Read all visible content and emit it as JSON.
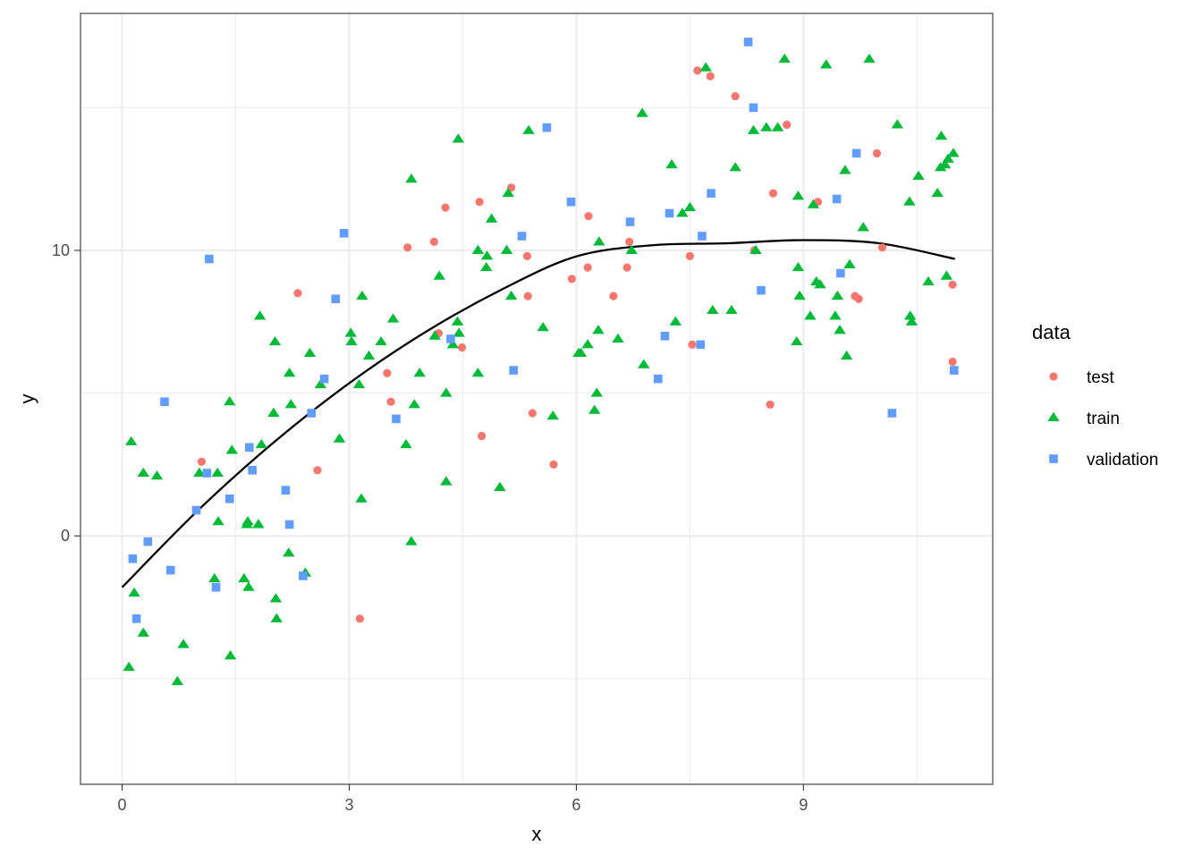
{
  "chart_data": {
    "type": "scatter",
    "title": "",
    "xlabel": "x",
    "ylabel": "y",
    "xlim": [
      -0.55,
      11.5
    ],
    "ylim": [
      -8.7,
      18.3
    ],
    "x_ticks": [
      0,
      3,
      6,
      9
    ],
    "x_tick_labels": [
      "0",
      "3",
      "6",
      "9"
    ],
    "y_ticks": [
      0,
      10
    ],
    "y_tick_labels": [
      "0",
      "10"
    ],
    "grid": true,
    "legend": {
      "title": "data",
      "position": "right"
    },
    "colors": {
      "test": "#F8766D",
      "train": "#00BA38",
      "validation": "#619CFF",
      "fit": "#000000"
    },
    "series": [
      {
        "name": "test",
        "marker": "circle",
        "points": [
          [
            1.05,
            2.6
          ],
          [
            2.32,
            8.5
          ],
          [
            2.58,
            2.3
          ],
          [
            3.14,
            -2.9
          ],
          [
            3.5,
            5.7
          ],
          [
            3.55,
            4.7
          ],
          [
            3.77,
            10.1
          ],
          [
            4.12,
            10.3
          ],
          [
            4.18,
            7.1
          ],
          [
            4.27,
            11.5
          ],
          [
            4.49,
            6.6
          ],
          [
            4.72,
            11.7
          ],
          [
            4.75,
            3.5
          ],
          [
            5.14,
            12.2
          ],
          [
            5.35,
            9.8
          ],
          [
            5.36,
            8.4
          ],
          [
            5.42,
            4.3
          ],
          [
            5.7,
            2.5
          ],
          [
            5.94,
            9.0
          ],
          [
            6.15,
            9.4
          ],
          [
            6.16,
            11.2
          ],
          [
            6.49,
            8.4
          ],
          [
            6.67,
            9.4
          ],
          [
            6.7,
            10.3
          ],
          [
            7.5,
            9.8
          ],
          [
            7.53,
            6.7
          ],
          [
            7.6,
            16.3
          ],
          [
            7.77,
            16.1
          ],
          [
            8.1,
            15.4
          ],
          [
            8.35,
            10.0
          ],
          [
            8.56,
            4.6
          ],
          [
            8.6,
            12.0
          ],
          [
            8.78,
            14.4
          ],
          [
            9.19,
            11.7
          ],
          [
            9.68,
            8.4
          ],
          [
            9.73,
            8.3
          ],
          [
            9.97,
            13.4
          ],
          [
            10.04,
            10.1
          ],
          [
            10.97,
            8.8
          ],
          [
            10.97,
            6.1
          ]
        ]
      },
      {
        "name": "train",
        "marker": "triangle",
        "points": [
          [
            0.09,
            -4.6
          ],
          [
            0.12,
            3.3
          ],
          [
            0.16,
            -2.0
          ],
          [
            0.28,
            2.2
          ],
          [
            0.28,
            -3.4
          ],
          [
            0.46,
            2.1
          ],
          [
            0.73,
            -5.1
          ],
          [
            0.81,
            -3.8
          ],
          [
            1.02,
            2.2
          ],
          [
            1.22,
            -1.5
          ],
          [
            1.26,
            2.2
          ],
          [
            1.27,
            0.5
          ],
          [
            1.42,
            4.7
          ],
          [
            1.43,
            -4.2
          ],
          [
            1.45,
            3.0
          ],
          [
            1.61,
            -1.5
          ],
          [
            1.65,
            0.4
          ],
          [
            1.66,
            0.5
          ],
          [
            1.67,
            -1.8
          ],
          [
            1.8,
            0.4
          ],
          [
            1.82,
            7.7
          ],
          [
            1.84,
            3.2
          ],
          [
            2.0,
            4.3
          ],
          [
            2.02,
            6.8
          ],
          [
            2.03,
            -2.2
          ],
          [
            2.04,
            -2.9
          ],
          [
            2.2,
            -0.6
          ],
          [
            2.21,
            5.7
          ],
          [
            2.23,
            4.6
          ],
          [
            2.42,
            -1.3
          ],
          [
            2.48,
            6.4
          ],
          [
            2.62,
            5.3
          ],
          [
            2.87,
            3.4
          ],
          [
            3.02,
            7.1
          ],
          [
            3.03,
            6.8
          ],
          [
            3.13,
            5.3
          ],
          [
            3.16,
            1.3
          ],
          [
            3.17,
            8.4
          ],
          [
            3.26,
            6.3
          ],
          [
            3.42,
            6.8
          ],
          [
            3.58,
            7.6
          ],
          [
            3.75,
            3.2
          ],
          [
            3.82,
            12.5
          ],
          [
            3.82,
            -0.2
          ],
          [
            3.86,
            4.6
          ],
          [
            3.93,
            5.7
          ],
          [
            4.13,
            7.0
          ],
          [
            4.19,
            9.1
          ],
          [
            4.28,
            1.9
          ],
          [
            4.28,
            5.0
          ],
          [
            4.37,
            6.7
          ],
          [
            4.43,
            7.5
          ],
          [
            4.44,
            13.9
          ],
          [
            4.45,
            7.1
          ],
          [
            4.7,
            10.0
          ],
          [
            4.7,
            5.7
          ],
          [
            4.81,
            9.4
          ],
          [
            4.82,
            9.8
          ],
          [
            4.88,
            11.1
          ],
          [
            4.99,
            1.7
          ],
          [
            5.08,
            10.0
          ],
          [
            5.1,
            12.0
          ],
          [
            5.14,
            8.4
          ],
          [
            5.37,
            14.2
          ],
          [
            5.56,
            7.3
          ],
          [
            5.69,
            4.2
          ],
          [
            6.03,
            6.4
          ],
          [
            6.06,
            6.4
          ],
          [
            6.15,
            6.7
          ],
          [
            6.24,
            4.4
          ],
          [
            6.27,
            5.0
          ],
          [
            6.29,
            7.2
          ],
          [
            6.3,
            10.3
          ],
          [
            6.55,
            6.9
          ],
          [
            6.73,
            10.0
          ],
          [
            6.87,
            14.8
          ],
          [
            6.89,
            6.0
          ],
          [
            7.26,
            13.0
          ],
          [
            7.31,
            7.5
          ],
          [
            7.4,
            11.3
          ],
          [
            7.5,
            11.5
          ],
          [
            7.71,
            16.4
          ],
          [
            7.8,
            7.9
          ],
          [
            8.05,
            7.9
          ],
          [
            8.1,
            12.9
          ],
          [
            8.34,
            14.2
          ],
          [
            8.37,
            10.0
          ],
          [
            8.51,
            14.3
          ],
          [
            8.66,
            14.3
          ],
          [
            8.75,
            16.7
          ],
          [
            8.91,
            6.8
          ],
          [
            8.93,
            9.4
          ],
          [
            8.93,
            11.9
          ],
          [
            8.95,
            8.4
          ],
          [
            9.09,
            7.7
          ],
          [
            9.13,
            11.6
          ],
          [
            9.17,
            8.9
          ],
          [
            9.22,
            8.8
          ],
          [
            9.3,
            16.5
          ],
          [
            9.42,
            7.7
          ],
          [
            9.45,
            8.4
          ],
          [
            9.48,
            7.2
          ],
          [
            9.55,
            12.8
          ],
          [
            9.57,
            6.3
          ],
          [
            9.61,
            9.5
          ],
          [
            9.79,
            10.8
          ],
          [
            9.87,
            16.7
          ],
          [
            10.24,
            14.4
          ],
          [
            10.4,
            11.7
          ],
          [
            10.41,
            7.7
          ],
          [
            10.43,
            7.5
          ],
          [
            10.52,
            12.6
          ],
          [
            10.65,
            8.9
          ],
          [
            10.77,
            12.0
          ],
          [
            10.81,
            12.9
          ],
          [
            10.82,
            14.0
          ],
          [
            10.87,
            13.0
          ],
          [
            10.89,
            9.1
          ],
          [
            10.91,
            13.2
          ],
          [
            10.98,
            13.4
          ]
        ]
      },
      {
        "name": "validation",
        "marker": "square",
        "points": [
          [
            0.14,
            -0.8
          ],
          [
            0.19,
            -2.9
          ],
          [
            0.34,
            -0.2
          ],
          [
            0.56,
            4.7
          ],
          [
            0.64,
            -1.2
          ],
          [
            0.98,
            0.9
          ],
          [
            1.12,
            2.2
          ],
          [
            1.15,
            9.7
          ],
          [
            1.24,
            -1.8
          ],
          [
            1.42,
            1.3
          ],
          [
            1.68,
            3.1
          ],
          [
            1.72,
            2.3
          ],
          [
            2.16,
            1.6
          ],
          [
            2.21,
            0.4
          ],
          [
            2.39,
            -1.4
          ],
          [
            2.5,
            4.3
          ],
          [
            2.67,
            5.5
          ],
          [
            2.82,
            8.3
          ],
          [
            2.93,
            10.6
          ],
          [
            3.62,
            4.1
          ],
          [
            4.34,
            6.9
          ],
          [
            5.17,
            5.8
          ],
          [
            5.28,
            10.5
          ],
          [
            5.61,
            14.3
          ],
          [
            5.93,
            11.7
          ],
          [
            6.71,
            11.0
          ],
          [
            7.08,
            5.5
          ],
          [
            7.17,
            7.0
          ],
          [
            7.23,
            11.3
          ],
          [
            7.64,
            6.7
          ],
          [
            7.66,
            10.5
          ],
          [
            7.78,
            12.0
          ],
          [
            8.27,
            17.3
          ],
          [
            8.34,
            15.0
          ],
          [
            8.44,
            8.6
          ],
          [
            9.44,
            11.8
          ],
          [
            9.49,
            9.2
          ],
          [
            9.7,
            13.4
          ],
          [
            10.17,
            4.3
          ],
          [
            10.99,
            5.8
          ]
        ]
      },
      {
        "name": "fit",
        "marker": "line",
        "x": [
          0.0,
          1.0,
          2.0,
          3.0,
          4.0,
          5.0,
          6.0,
          7.0,
          8.0,
          9.0,
          10.0,
          11.0
        ],
        "y": [
          -1.8,
          0.89,
          3.27,
          5.35,
          7.13,
          8.61,
          9.79,
          10.18,
          10.25,
          10.36,
          10.25,
          9.7
        ]
      }
    ]
  }
}
